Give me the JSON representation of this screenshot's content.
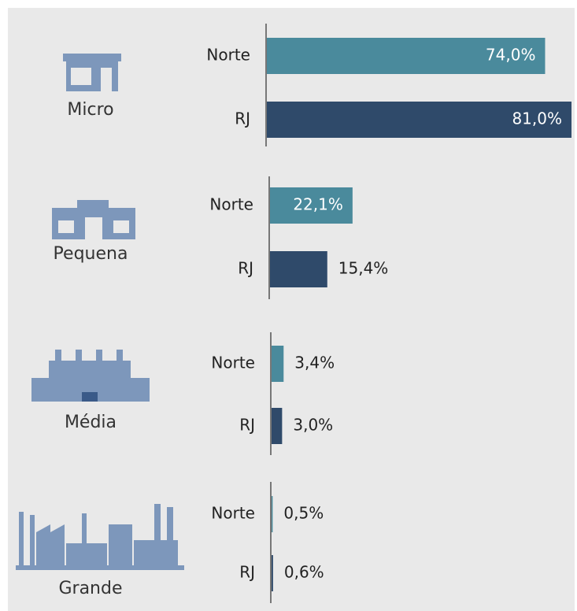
{
  "chart_data": {
    "type": "bar",
    "orientation": "horizontal",
    "categories": [
      "Micro",
      "Pequena",
      "Média",
      "Grande"
    ],
    "series": [
      {
        "name": "Norte",
        "color": "#4a8a9c",
        "values": [
          74.0,
          22.1,
          3.4,
          0.5
        ],
        "value_labels": [
          "74,0%",
          "22,1%",
          "3,4%",
          "0,5%"
        ]
      },
      {
        "name": "RJ",
        "color": "#2f4a6a",
        "values": [
          81.0,
          15.4,
          3.0,
          0.6
        ],
        "value_labels": [
          "81,0%",
          "15,4%",
          "3,0%",
          "0,6%"
        ]
      }
    ],
    "xlim": [
      0,
      81
    ]
  }
}
